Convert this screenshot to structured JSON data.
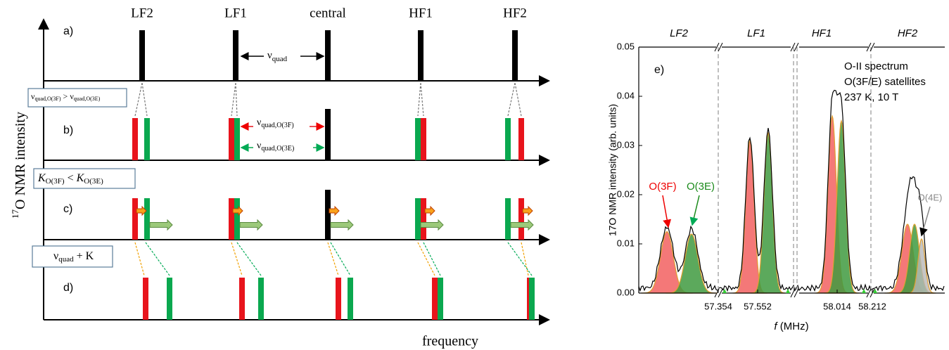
{
  "schematic": {
    "columns": [
      "LF2",
      "LF1",
      "central",
      "HF1",
      "HF2"
    ],
    "rows": [
      "a)",
      "b)",
      "c)",
      "d)"
    ],
    "y_label": {
      "sup": "17",
      "text": "O NMR intensity"
    },
    "x_label": "frequency",
    "nu_quad": {
      "symbol": "ν",
      "sub": "quad"
    },
    "nu_3f": {
      "symbol": "ν",
      "sub": "quad,O(3F)"
    },
    "nu_3e": {
      "symbol": "ν",
      "sub": "quad,O(3E)"
    },
    "box_b": {
      "symbol": "ν",
      "sub1": "quad,O(3F)",
      "op": " > ",
      "sub2": "quad,O(3E)"
    },
    "box_c": {
      "symbol": "K",
      "sub1": "O(3F)",
      "op": " < ",
      "sub2": "O(3E)"
    },
    "box_d": {
      "symbol": "ν",
      "sub": "quad",
      "rest": " + K"
    }
  },
  "chart_data": {
    "type": "peaks",
    "panel": "e)",
    "annotations": [
      "O-II spectrum",
      "O(3F/E) satellites",
      "237 K, 10 T"
    ],
    "segments": [
      "LF2",
      "LF1",
      "HF1",
      "HF2"
    ],
    "y_label": "17O NMR intensity (arb. units)",
    "x_label": {
      "symbol": "f",
      "unit": " (MHz)"
    },
    "ylim": [
      0,
      0.05
    ],
    "yticks": [
      {
        "value": 0,
        "label": "0.00"
      },
      {
        "value": 0.01,
        "label": "0.01"
      },
      {
        "value": 0.02,
        "label": "0.02"
      },
      {
        "value": 0.03,
        "label": "0.03"
      },
      {
        "value": 0.04,
        "label": "0.04"
      },
      {
        "value": 0.05,
        "label": "0.05"
      }
    ],
    "xticks": [
      57.354,
      57.552,
      58.014,
      58.212
    ],
    "series": [
      {
        "name": "O(3F)",
        "color": "#f26060",
        "values": [
          0.0125,
          0.031,
          0.036,
          0.014
        ]
      },
      {
        "name": "O(3E)",
        "color": "#3f9a40",
        "values": [
          0.012,
          0.0325,
          0.035,
          0.014
        ]
      },
      {
        "name": "O(4E)",
        "color": "#b8b8b8",
        "values": [
          0.011
        ]
      }
    ]
  }
}
